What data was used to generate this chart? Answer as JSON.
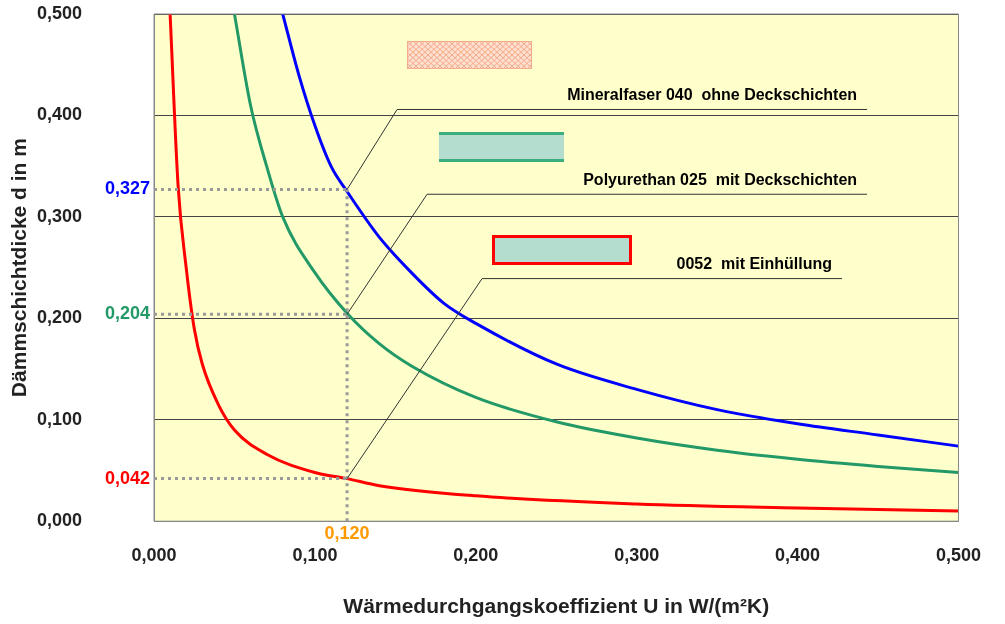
{
  "chart_data": {
    "type": "line",
    "xlabel": "Wärmedurchgangskoeffizient U in W/(m²K)",
    "ylabel": "Dämmschichtdicke d in m",
    "xlim": [
      0,
      0.5
    ],
    "ylim": [
      0,
      0.5
    ],
    "xticks": [
      {
        "value": 0,
        "label": "0,000"
      },
      {
        "value": 0.1,
        "label": "0,100"
      },
      {
        "value": 0.2,
        "label": "0,200"
      },
      {
        "value": 0.3,
        "label": "0,300"
      },
      {
        "value": 0.4,
        "label": "0,400"
      },
      {
        "value": 0.5,
        "label": "0,500"
      }
    ],
    "yticks": [
      {
        "value": 0,
        "label": "0,000"
      },
      {
        "value": 0.1,
        "label": "0,100"
      },
      {
        "value": 0.2,
        "label": "0,200"
      },
      {
        "value": 0.3,
        "label": "0,300"
      },
      {
        "value": 0.4,
        "label": "0,400"
      },
      {
        "value": 0.5,
        "label": "0,500"
      }
    ],
    "grid": "y",
    "legend": false,
    "series": [
      {
        "color": "#0000ff",
        "x": [
          0.08,
          0.09,
          0.1,
          0.11,
          0.12,
          0.14,
          0.16,
          0.18,
          0.2,
          0.25,
          0.3,
          0.35,
          0.4,
          0.45,
          0.5
        ],
        "values": [
          0.5,
          0.44,
          0.39,
          0.35,
          0.325,
          0.28,
          0.245,
          0.215,
          0.195,
          0.155,
          0.13,
          0.11,
          0.096,
          0.085,
          0.074
        ]
      },
      {
        "color": "#229966",
        "x": [
          0.05,
          0.06,
          0.07,
          0.08,
          0.1,
          0.12,
          0.14,
          0.16,
          0.2,
          0.25,
          0.3,
          0.35,
          0.4,
          0.45,
          0.5
        ],
        "values": [
          0.5,
          0.41,
          0.35,
          0.3,
          0.245,
          0.205,
          0.175,
          0.153,
          0.122,
          0.098,
          0.082,
          0.07,
          0.061,
          0.054,
          0.048
        ]
      },
      {
        "color": "#ff0000",
        "x": [
          0.01,
          0.015,
          0.02,
          0.025,
          0.03,
          0.04,
          0.05,
          0.07,
          0.1,
          0.12,
          0.14,
          0.2,
          0.3,
          0.4,
          0.5
        ],
        "values": [
          0.5,
          0.33,
          0.25,
          0.19,
          0.155,
          0.115,
          0.09,
          0.066,
          0.048,
          0.042,
          0.035,
          0.025,
          0.017,
          0.013,
          0.01
        ]
      }
    ],
    "ref_lines": [
      {
        "axis": "y",
        "value": 0.327,
        "label": "0,327",
        "color": "#999999",
        "line_style": "dotted"
      },
      {
        "axis": "y",
        "value": 0.204,
        "label": "0,204",
        "color": "#999999",
        "line_style": "dotted"
      },
      {
        "axis": "y",
        "value": 0.042,
        "label": "0,042",
        "color": "#999999",
        "line_style": "dotted"
      },
      {
        "axis": "x",
        "value": 0.12,
        "label": "0,120",
        "color": "#999999",
        "line_style": "dotted"
      }
    ],
    "annotations": [
      "Mineralfaser 040  ohne Deckschichten",
      "Polyurethan 025  mit Deckschichten",
      "0052  mit Einhüllung"
    ]
  }
}
